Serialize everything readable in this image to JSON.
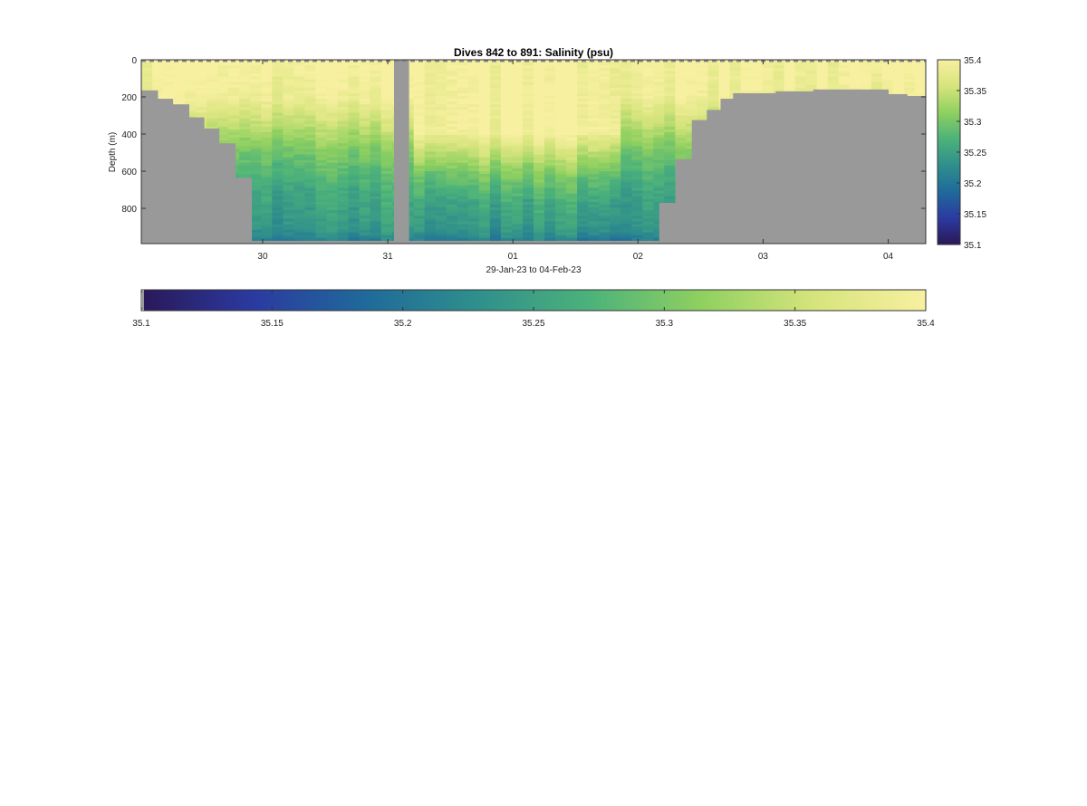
{
  "chart_data": {
    "type": "heatmap",
    "title": "Dives 842 to 891: Salinity (psu)",
    "xlabel": "29-Jan-23 to 04-Feb-23",
    "ylabel": "Depth (m)",
    "x_ticks": [
      {
        "day": 30,
        "label": "30"
      },
      {
        "day": 31,
        "label": "31"
      },
      {
        "day": 32,
        "label": "01"
      },
      {
        "day": 33,
        "label": "02"
      },
      {
        "day": 34,
        "label": "03"
      },
      {
        "day": 35,
        "label": "04"
      }
    ],
    "xlim": [
      29.03,
      35.3
    ],
    "y_ticks": [
      {
        "value": 0,
        "label": "0"
      },
      {
        "value": 200,
        "label": "200"
      },
      {
        "value": 400,
        "label": "400"
      },
      {
        "value": 600,
        "label": "600"
      },
      {
        "value": 800,
        "label": "800"
      }
    ],
    "ylim": [
      0,
      990
    ],
    "y_reversed": true,
    "colorbar_ticks": [
      {
        "value": 35.1,
        "label": "35.1"
      },
      {
        "value": 35.15,
        "label": "35.15"
      },
      {
        "value": 35.2,
        "label": "35.2"
      },
      {
        "value": 35.25,
        "label": "35.25"
      },
      {
        "value": 35.3,
        "label": "35.3"
      },
      {
        "value": 35.35,
        "label": "35.35"
      },
      {
        "value": 35.4,
        "label": "35.4"
      }
    ],
    "clim": [
      35.1,
      35.4
    ],
    "colormap": [
      "#2a1858",
      "#2b3aa0",
      "#1f6a9a",
      "#2f8f8c",
      "#4cb27a",
      "#8fd060",
      "#d6e47c",
      "#f7f0a0"
    ],
    "missing_color": "#999999",
    "bottom_depth_profile": [
      {
        "x_start": 29.03,
        "x_end": 29.16,
        "depth": 165
      },
      {
        "x_start": 29.16,
        "x_end": 29.28,
        "depth": 210
      },
      {
        "x_start": 29.28,
        "x_end": 29.41,
        "depth": 240
      },
      {
        "x_start": 29.41,
        "x_end": 29.53,
        "depth": 310
      },
      {
        "x_start": 29.53,
        "x_end": 29.65,
        "depth": 370
      },
      {
        "x_start": 29.65,
        "x_end": 29.78,
        "depth": 450
      },
      {
        "x_start": 29.78,
        "x_end": 29.91,
        "depth": 635
      },
      {
        "x_start": 29.91,
        "x_end": 31.05,
        "depth": 975
      },
      {
        "x_start": 31.17,
        "x_end": 33.17,
        "depth": 975
      },
      {
        "x_start": 33.17,
        "x_end": 33.3,
        "depth": 770
      },
      {
        "x_start": 33.3,
        "x_end": 33.43,
        "depth": 535
      },
      {
        "x_start": 33.43,
        "x_end": 33.55,
        "depth": 325
      },
      {
        "x_start": 33.55,
        "x_end": 33.66,
        "depth": 270
      },
      {
        "x_start": 33.66,
        "x_end": 33.76,
        "depth": 210
      },
      {
        "x_start": 33.76,
        "x_end": 34.1,
        "depth": 180
      },
      {
        "x_start": 34.1,
        "x_end": 34.4,
        "depth": 170
      },
      {
        "x_start": 34.4,
        "x_end": 34.8,
        "depth": 160
      },
      {
        "x_start": 34.8,
        "x_end": 35.0,
        "depth": 160
      },
      {
        "x_start": 35.0,
        "x_end": 35.15,
        "depth": 185
      },
      {
        "x_start": 35.15,
        "x_end": 35.3,
        "depth": 195
      }
    ],
    "data_gap": {
      "x_start": 31.05,
      "x_end": 31.17
    },
    "salinity_depth_profile": [
      {
        "depth": 0,
        "salinity": 35.4
      },
      {
        "depth": 200,
        "salinity": 35.39
      },
      {
        "depth": 300,
        "salinity": 35.36
      },
      {
        "depth": 400,
        "salinity": 35.33
      },
      {
        "depth": 500,
        "salinity": 35.3
      },
      {
        "depth": 600,
        "salinity": 35.28
      },
      {
        "depth": 700,
        "salinity": 35.26
      },
      {
        "depth": 800,
        "salinity": 35.25
      },
      {
        "depth": 900,
        "salinity": 35.24
      },
      {
        "depth": 975,
        "salinity": 35.21
      }
    ],
    "fresh_upper_period": {
      "x_start": 31.17,
      "x_end": 32.85,
      "fresh_layer_depth": 400
    },
    "colorbars": [
      {
        "orientation": "vertical",
        "placement": "right"
      },
      {
        "orientation": "horizontal",
        "placement": "below"
      }
    ]
  }
}
